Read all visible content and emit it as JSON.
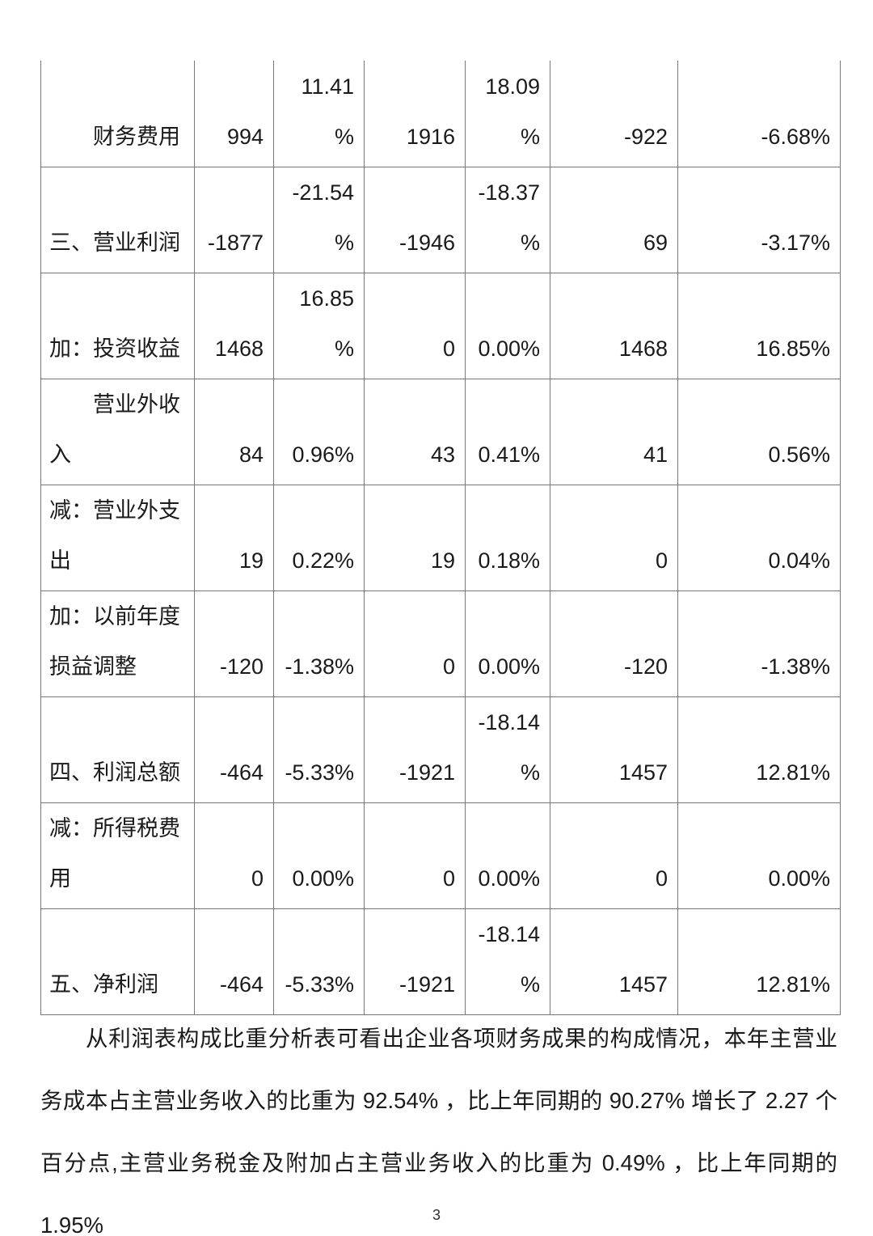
{
  "table": {
    "column_keys": [
      "current-amount",
      "current-pct",
      "prior-amount",
      "prior-pct",
      "change-amount",
      "change-pct"
    ],
    "rows": [
      {
        "label": "　　财务费用",
        "cells": [
          "994",
          "11.41\n%",
          "1916",
          "18.09\n%",
          "-922",
          "-6.68%"
        ]
      },
      {
        "label": "三、营业利润",
        "cells": [
          "-1877",
          "-21.54\n%",
          "-1946",
          "-18.37\n%",
          "69",
          "-3.17%"
        ]
      },
      {
        "label": "加：投资收益",
        "cells": [
          "1468",
          "16.85\n%",
          "0",
          "0.00%",
          "1468",
          "16.85%"
        ]
      },
      {
        "label": "　　营业外收\n入",
        "cells": [
          "84",
          "0.96%",
          "43",
          "0.41%",
          "41",
          "0.56%"
        ]
      },
      {
        "label": "减：营业外支\n出",
        "cells": [
          "19",
          "0.22%",
          "19",
          "0.18%",
          "0",
          "0.04%"
        ]
      },
      {
        "label": "加：以前年度\n损益调整",
        "cells": [
          "-120",
          "-1.38%",
          "0",
          "0.00%",
          "-120",
          "-1.38%"
        ]
      },
      {
        "label": "四、利润总额",
        "cells": [
          "-464",
          "-5.33%",
          "-1921",
          "-18.14\n%",
          "1457",
          "12.81%"
        ]
      },
      {
        "label": "减：所得税费\n用",
        "cells": [
          "0",
          "0.00%",
          "0",
          "0.00%",
          "0",
          "0.00%"
        ]
      },
      {
        "label": "五、净利润",
        "cells": [
          "-464",
          "-5.33%",
          "-1921",
          "-18.14\n%",
          "1457",
          "12.81%"
        ]
      }
    ]
  },
  "paragraph": {
    "text": "从利润表构成比重分析表可看出企业各项财务成果的构成情况，本年主营业务成本占主营业务收入的比重为 92.54% ，比上年同期的 90.27% 增长了 2.27 个百分点,主营业务税金及附加占主营业务收入的比重为 0.49% ，比上年同期的 1.95%"
  },
  "page": {
    "number": "3"
  }
}
